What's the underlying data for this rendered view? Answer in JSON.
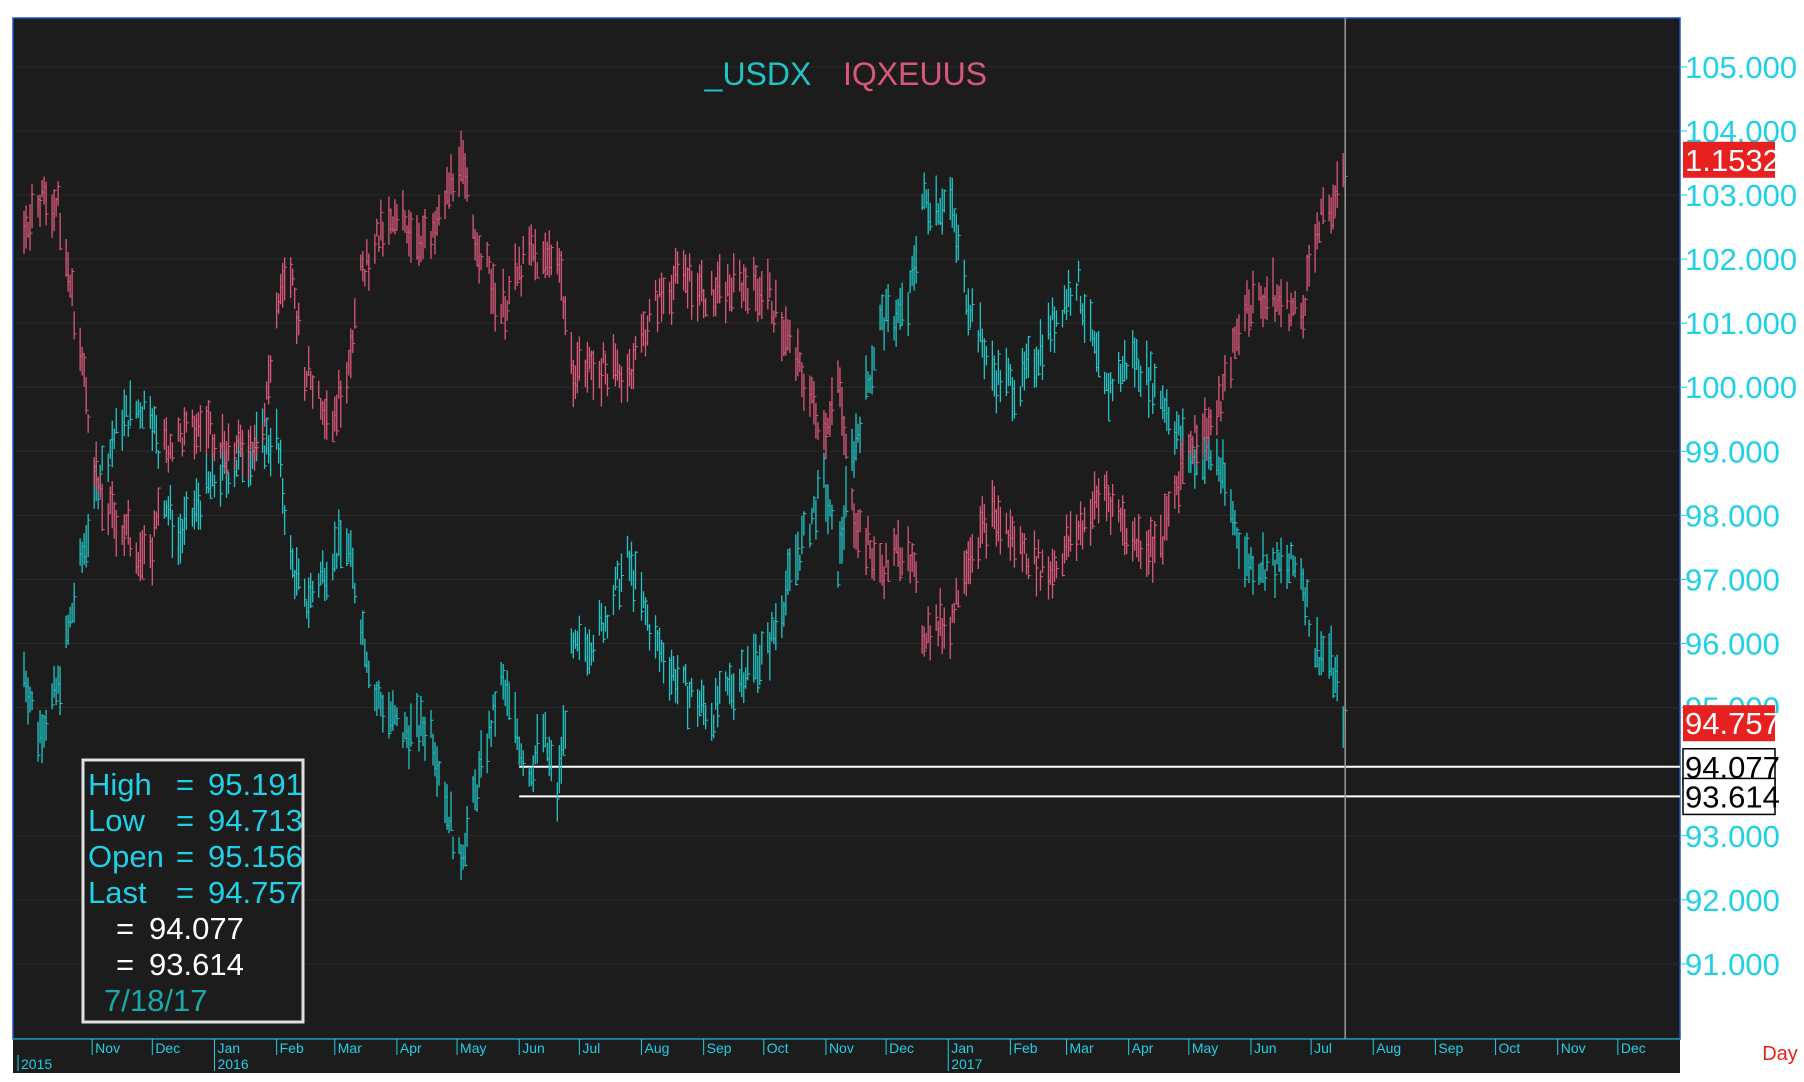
{
  "chart_data": {
    "type": "bar",
    "subtype": "ohlc",
    "title_series": [
      "_USDX",
      "IQXEUUS"
    ],
    "series": [
      {
        "name": "_USDX",
        "color": "#20c4c4",
        "points": [
          [
            "2015-09-28",
            95.6
          ],
          [
            "2015-10-05",
            94.6
          ],
          [
            "2015-10-15",
            95.3
          ],
          [
            "2015-10-26",
            97.2
          ],
          [
            "2015-11-05",
            98.7
          ],
          [
            "2015-11-16",
            99.5
          ],
          [
            "2015-11-30",
            99.8
          ],
          [
            "2015-12-07",
            98.3
          ],
          [
            "2015-12-14",
            97.6
          ],
          [
            "2015-12-28",
            98.4
          ],
          [
            "2016-01-11",
            98.8
          ],
          [
            "2016-01-25",
            99.1
          ],
          [
            "2016-02-01",
            99.2
          ],
          [
            "2016-02-08",
            97.3
          ],
          [
            "2016-02-15",
            96.6
          ],
          [
            "2016-02-29",
            97.4
          ],
          [
            "2016-03-07",
            97.6
          ],
          [
            "2016-03-14",
            96.4
          ],
          [
            "2016-03-21",
            95.2
          ],
          [
            "2016-04-04",
            94.6
          ],
          [
            "2016-04-18",
            94.7
          ],
          [
            "2016-05-02",
            92.6
          ],
          [
            "2016-05-09",
            93.5
          ],
          [
            "2016-05-23",
            95.4
          ],
          [
            "2016-06-06",
            94.0
          ],
          [
            "2016-06-13",
            94.6
          ],
          [
            "2016-06-20",
            93.6
          ],
          [
            "2016-06-27",
            95.8
          ],
          [
            "2016-07-11",
            96.2
          ],
          [
            "2016-07-25",
            97.3
          ],
          [
            "2016-08-08",
            96.0
          ],
          [
            "2016-08-22",
            95.3
          ],
          [
            "2016-09-05",
            94.9
          ],
          [
            "2016-09-19",
            95.5
          ],
          [
            "2016-10-03",
            95.9
          ],
          [
            "2016-10-17",
            97.3
          ],
          [
            "2016-10-31",
            98.5
          ],
          [
            "2016-11-07",
            97.2
          ],
          [
            "2016-11-14",
            98.9
          ],
          [
            "2016-11-28",
            101.0
          ],
          [
            "2016-12-12",
            101.2
          ],
          [
            "2016-12-19",
            102.9
          ],
          [
            "2017-01-02",
            102.9
          ],
          [
            "2017-01-09",
            101.6
          ],
          [
            "2017-01-23",
            100.2
          ],
          [
            "2017-02-06",
            100.0
          ],
          [
            "2017-02-20",
            100.9
          ],
          [
            "2017-03-06",
            101.7
          ],
          [
            "2017-03-20",
            99.9
          ],
          [
            "2017-04-03",
            100.5
          ],
          [
            "2017-04-17",
            99.9
          ],
          [
            "2017-05-01",
            98.9
          ],
          [
            "2017-05-15",
            98.9
          ],
          [
            "2017-05-29",
            97.3
          ],
          [
            "2017-06-12",
            97.2
          ],
          [
            "2017-06-26",
            97.2
          ],
          [
            "2017-07-03",
            95.9
          ],
          [
            "2017-07-10",
            95.8
          ],
          [
            "2017-07-18",
            94.757
          ]
        ]
      },
      {
        "name": "IQXEUUS",
        "color": "#d9587a",
        "points": [
          [
            "2015-09-28",
            102.4
          ],
          [
            "2015-10-05",
            103.0
          ],
          [
            "2015-10-15",
            102.8
          ],
          [
            "2015-10-26",
            100.6
          ],
          [
            "2015-11-05",
            98.2
          ],
          [
            "2015-11-16",
            97.8
          ],
          [
            "2015-11-30",
            97.2
          ],
          [
            "2015-12-07",
            99.1
          ],
          [
            "2015-12-14",
            99.2
          ],
          [
            "2015-12-28",
            99.4
          ],
          [
            "2016-01-11",
            99.0
          ],
          [
            "2016-01-25",
            99.3
          ],
          [
            "2016-02-01",
            101.2
          ],
          [
            "2016-02-08",
            101.8
          ],
          [
            "2016-02-15",
            100.3
          ],
          [
            "2016-02-29",
            99.5
          ],
          [
            "2016-03-07",
            100.3
          ],
          [
            "2016-03-14",
            101.7
          ],
          [
            "2016-03-21",
            102.3
          ],
          [
            "2016-04-04",
            102.6
          ],
          [
            "2016-04-18",
            102.2
          ],
          [
            "2016-05-02",
            103.6
          ],
          [
            "2016-05-09",
            102.5
          ],
          [
            "2016-05-23",
            101.2
          ],
          [
            "2016-06-06",
            102.1
          ],
          [
            "2016-06-13",
            101.9
          ],
          [
            "2016-06-20",
            102.2
          ],
          [
            "2016-06-27",
            100.3
          ],
          [
            "2016-07-11",
            100.3
          ],
          [
            "2016-07-25",
            100.2
          ],
          [
            "2016-08-08",
            101.3
          ],
          [
            "2016-08-22",
            101.8
          ],
          [
            "2016-09-05",
            101.4
          ],
          [
            "2016-09-19",
            101.6
          ],
          [
            "2016-10-03",
            101.5
          ],
          [
            "2016-10-17",
            100.4
          ],
          [
            "2016-10-31",
            99.3
          ],
          [
            "2016-11-07",
            100.1
          ],
          [
            "2016-11-14",
            98.1
          ],
          [
            "2016-11-28",
            97.1
          ],
          [
            "2016-12-12",
            97.6
          ],
          [
            "2016-12-19",
            96.2
          ],
          [
            "2017-01-02",
            96.3
          ],
          [
            "2017-01-09",
            97.3
          ],
          [
            "2017-01-23",
            98.0
          ],
          [
            "2017-02-06",
            97.5
          ],
          [
            "2017-02-20",
            97.1
          ],
          [
            "2017-03-06",
            97.7
          ],
          [
            "2017-03-20",
            98.4
          ],
          [
            "2017-04-03",
            97.6
          ],
          [
            "2017-04-17",
            97.5
          ],
          [
            "2017-05-01",
            99.2
          ],
          [
            "2017-05-15",
            99.5
          ],
          [
            "2017-05-29",
            101.3
          ],
          [
            "2017-06-12",
            101.4
          ],
          [
            "2017-06-26",
            101.1
          ],
          [
            "2017-07-03",
            102.4
          ],
          [
            "2017-07-10",
            102.8
          ],
          [
            "2017-07-18",
            103.2
          ]
        ]
      }
    ],
    "y_axis": {
      "range": [
        90.0,
        105.7
      ],
      "ticks": [
        "105.000",
        "104.000",
        "103.000",
        "102.000",
        "101.000",
        "100.000",
        "99.000",
        "98.000",
        "97.000",
        "96.000",
        "95.000",
        "93.000",
        "92.000",
        "91.000"
      ],
      "side": "right"
    },
    "x_axis": {
      "range": [
        "2015-09-25",
        "2017-12-31"
      ],
      "month_labels": [
        {
          "label": "Nov",
          "date": "2015-11-01"
        },
        {
          "label": "Dec",
          "date": "2015-12-01"
        },
        {
          "label": "Jan",
          "date": "2016-01-01"
        },
        {
          "label": "Feb",
          "date": "2016-02-01"
        },
        {
          "label": "Mar",
          "date": "2016-03-01"
        },
        {
          "label": "Apr",
          "date": "2016-04-01"
        },
        {
          "label": "May",
          "date": "2016-05-01"
        },
        {
          "label": "Jun",
          "date": "2016-06-01"
        },
        {
          "label": "Jul",
          "date": "2016-07-01"
        },
        {
          "label": "Aug",
          "date": "2016-08-01"
        },
        {
          "label": "Sep",
          "date": "2016-09-01"
        },
        {
          "label": "Oct",
          "date": "2016-10-01"
        },
        {
          "label": "Nov",
          "date": "2016-11-01"
        },
        {
          "label": "Dec",
          "date": "2016-12-01"
        },
        {
          "label": "Jan",
          "date": "2017-01-01"
        },
        {
          "label": "Feb",
          "date": "2017-02-01"
        },
        {
          "label": "Mar",
          "date": "2017-03-01"
        },
        {
          "label": "Apr",
          "date": "2017-04-01"
        },
        {
          "label": "May",
          "date": "2017-05-01"
        },
        {
          "label": "Jun",
          "date": "2017-06-01"
        },
        {
          "label": "Jul",
          "date": "2017-07-01"
        },
        {
          "label": "Aug",
          "date": "2017-08-01"
        },
        {
          "label": "Sep",
          "date": "2017-09-01"
        },
        {
          "label": "Oct",
          "date": "2017-10-01"
        },
        {
          "label": "Nov",
          "date": "2017-11-01"
        },
        {
          "label": "Dec",
          "date": "2017-12-01"
        }
      ],
      "year_labels": [
        {
          "label": "2015",
          "date": "2015-09-25"
        },
        {
          "label": "2016",
          "date": "2016-01-01"
        },
        {
          "label": "2017",
          "date": "2017-01-01"
        }
      ],
      "interval_label": "Day"
    },
    "horizontal_lines": [
      {
        "value": 94.077,
        "label": "94.077",
        "start": "2016-06-01"
      },
      {
        "value": 93.614,
        "label": "93.614",
        "start": "2016-06-01"
      }
    ],
    "cursor_line": {
      "date": "2017-07-18"
    },
    "price_tags": [
      {
        "label": "1.1532",
        "value": 103.55,
        "color": "#e82020"
      },
      {
        "label": "94.757",
        "value": 94.757,
        "color": "#e82020"
      }
    ],
    "info_box": {
      "rows": [
        {
          "label": "High",
          "eq": "=",
          "value": "95.191"
        },
        {
          "label": "Low",
          "eq": "=",
          "value": "94.713"
        },
        {
          "label": "Open",
          "eq": "=",
          "value": "95.156"
        },
        {
          "label": "Last",
          "eq": "=",
          "value": "94.757"
        }
      ],
      "line_rows": [
        {
          "eq": "=",
          "value": "94.077"
        },
        {
          "eq": "=",
          "value": "93.614"
        }
      ],
      "date": "7/18/17"
    },
    "colors": {
      "background": "#1c1c1c",
      "grid": "#2a2a2a",
      "axis_text": "#1fd0e6",
      "axis_bg": "#ffffff",
      "frame": "#2050c8"
    }
  }
}
